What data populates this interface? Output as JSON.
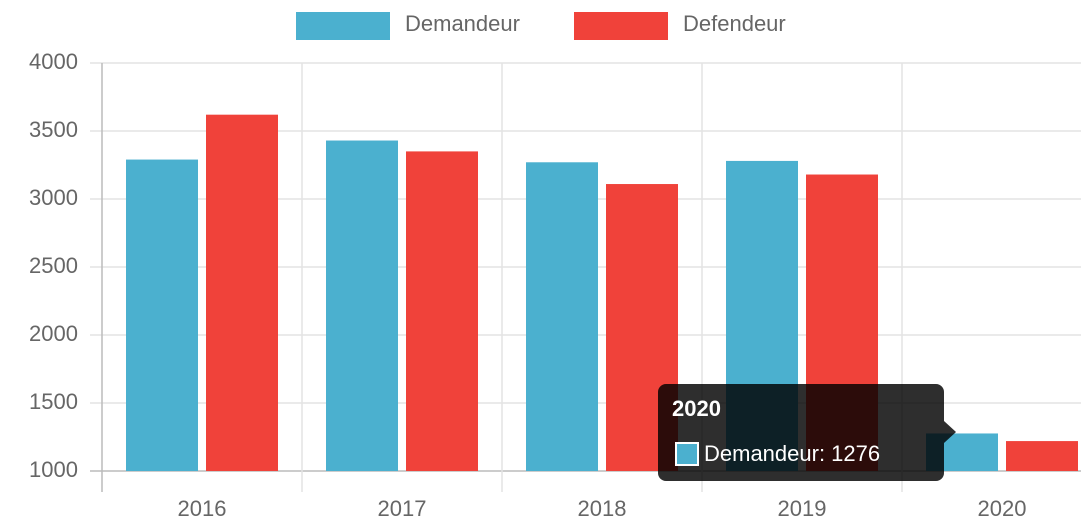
{
  "chart_data": {
    "type": "bar",
    "categories": [
      "2016",
      "2017",
      "2018",
      "2019",
      "2020"
    ],
    "series": [
      {
        "name": "Demandeur",
        "color": "#4bb0cf",
        "values": [
          3290,
          3430,
          3270,
          3280,
          1276
        ]
      },
      {
        "name": "Defendeur",
        "color": "#f0423a",
        "values": [
          3620,
          3350,
          3110,
          3180,
          1220
        ]
      }
    ],
    "ylim": [
      1000,
      4000
    ],
    "yticks": [
      1000,
      1500,
      2000,
      2500,
      3000,
      3500,
      4000
    ],
    "grid": true,
    "legend": "top",
    "tooltip": {
      "title": "2020",
      "label": "Demandeur: 1276"
    }
  }
}
